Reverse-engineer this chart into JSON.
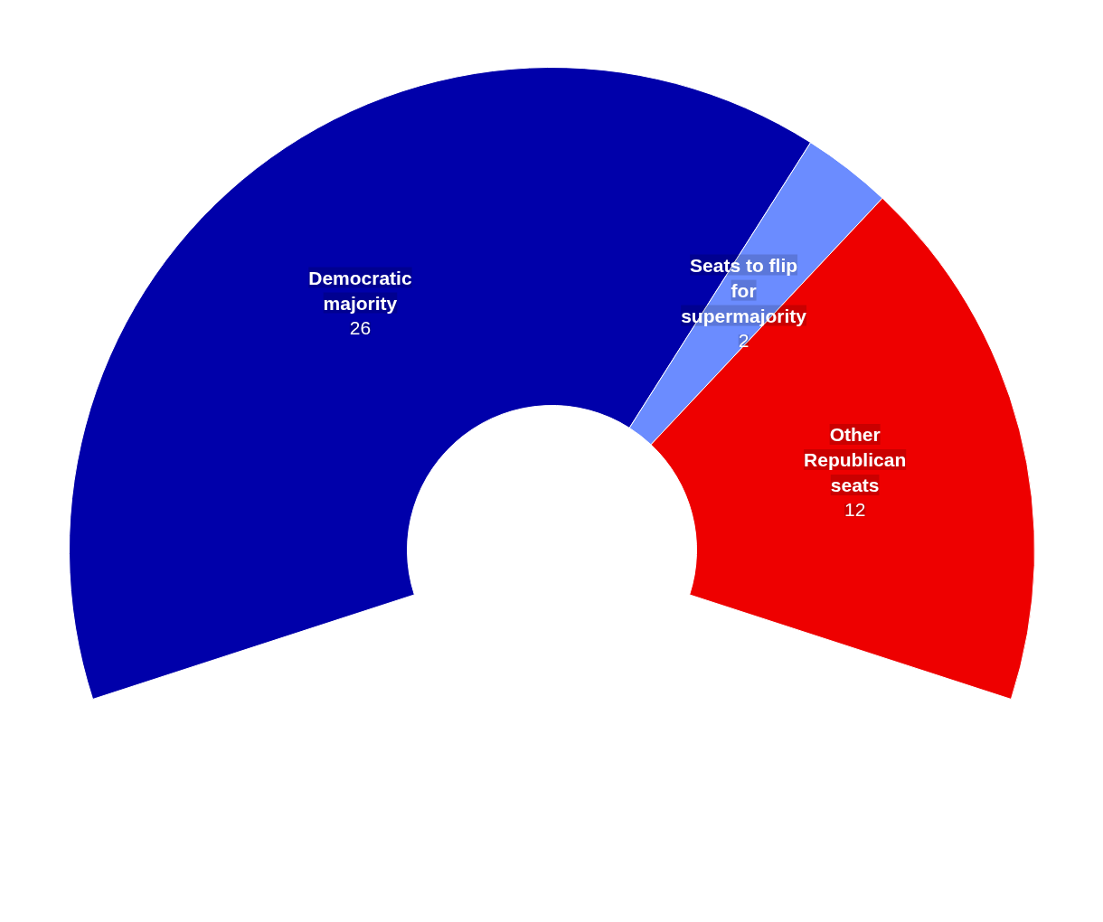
{
  "chart_data": {
    "type": "donut",
    "categories": [
      "Democratic majority",
      "Seats to flip for supermajority",
      "Other Republican seats"
    ],
    "values": [
      26,
      2,
      12
    ],
    "colors": [
      "#0000aa",
      "#6b8cff",
      "#ee0000"
    ],
    "data_labels": true
  }
}
